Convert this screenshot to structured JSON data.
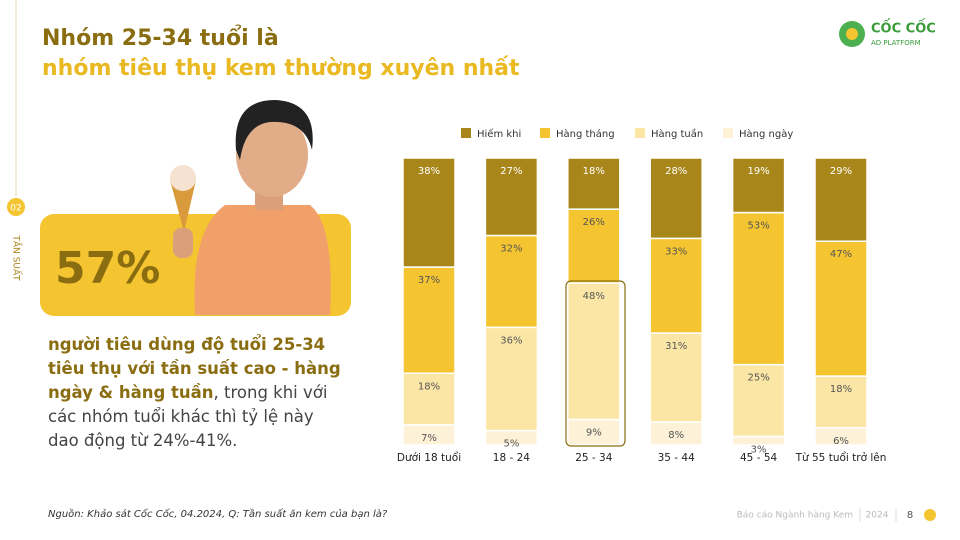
{
  "header": {
    "title_line1": "Nhóm 25-34 tuổi là",
    "title_line2": "nhóm tiêu thụ kem thường xuyên nhất"
  },
  "logo": {
    "name": "CỐC CỐC",
    "sub": "AD PLATFORM"
  },
  "side": {
    "number": "02",
    "label": "TẦN SUẤT"
  },
  "highlight": {
    "stat": "57%",
    "text_bold": "người tiêu dùng độ tuổi 25-34 tiêu thụ với tần suất cao - hàng ngày & hàng tuần",
    "text_rest": ", trong khi với các nhóm tuổi khác thì tỷ lệ này dao động từ 24%-41%."
  },
  "source": "Nguồn: Khảo sát Cốc Cốc, 04.2024, Q: Tần suất ăn kem của bạn là?",
  "footer": {
    "report": "Báo cáo Ngành hàng Kem",
    "year": "2024",
    "page": "8"
  },
  "chart_data": {
    "type": "stacked-bar",
    "categories": [
      "Dưới 18 tuổi",
      "18 - 24",
      "25 - 34",
      "35 - 44",
      "45 - 54",
      "Từ 55 tuổi trở lên"
    ],
    "series": [
      {
        "name": "Hiếm khi",
        "color": "#a8861a",
        "values": [
          38,
          27,
          18,
          28,
          19,
          29
        ],
        "value_labels": [
          "38%",
          "27%",
          "18%",
          "28%",
          "19%",
          "29%"
        ]
      },
      {
        "name": "Hàng tháng",
        "color": "#f5c531",
        "values": [
          37,
          32,
          26,
          33,
          53,
          47
        ],
        "value_labels": [
          "37%",
          "32%",
          "26%",
          "33%",
          "53%",
          "47%"
        ]
      },
      {
        "name": "Hàng tuần",
        "color": "#fbe6a6",
        "values": [
          18,
          36,
          48,
          31,
          25,
          18
        ],
        "value_labels": [
          "18%",
          "36%",
          "48%",
          "31%",
          "25%",
          "18%"
        ]
      },
      {
        "name": "Hàng ngày",
        "color": "#fdf1d8",
        "values": [
          7,
          5,
          9,
          8,
          3,
          6
        ],
        "value_labels": [
          "7%",
          "5%",
          "9%",
          "8%",
          "3%",
          "6%"
        ]
      }
    ]
  }
}
